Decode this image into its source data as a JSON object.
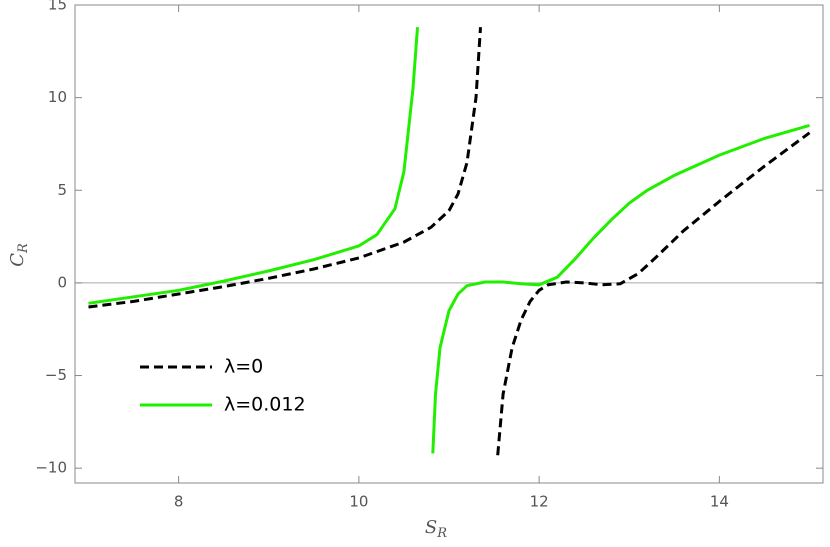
{
  "chart_data": {
    "type": "line",
    "xlabel": "S",
    "xlabel_sub": "R",
    "ylabel": "C",
    "ylabel_sub": "R",
    "xlim": [
      6.85,
      15.15
    ],
    "ylim": [
      -10.8,
      15
    ],
    "xticks": [
      8,
      10,
      12,
      14
    ],
    "yticks": [
      {
        "value": -10,
        "label": "−10"
      },
      {
        "value": -5,
        "label": "−5"
      },
      0,
      5,
      10,
      15
    ],
    "zero_line": true,
    "series": [
      {
        "name": "λ=0",
        "color": "#000000",
        "dashed": true,
        "x": [
          7,
          7.5,
          8,
          8.5,
          9,
          9.5,
          10,
          10.5,
          10.8,
          11,
          11.1,
          11.2,
          11.3,
          11.35,
          null,
          11.54,
          11.6,
          11.7,
          11.8,
          11.9,
          12,
          12.1,
          12.3,
          12.5,
          12.7,
          12.9,
          13.1,
          13.3,
          13.6,
          14,
          14.5,
          15
        ],
        "values": [
          -1.3,
          -1.0,
          -0.6,
          -0.2,
          0.25,
          0.75,
          1.35,
          2.2,
          3.0,
          3.9,
          4.8,
          6.5,
          10.0,
          13.8,
          null,
          -9.3,
          -6,
          -3.5,
          -2.0,
          -1.0,
          -0.4,
          -0.1,
          0.05,
          0.0,
          -0.1,
          -0.05,
          0.5,
          1.4,
          2.8,
          4.4,
          6.3,
          8.1
        ]
      },
      {
        "name": "λ=0.012",
        "color": "#22ee00",
        "dashed": false,
        "x": [
          7,
          7.5,
          8,
          8.5,
          9,
          9.5,
          10,
          10.2,
          10.4,
          10.5,
          10.6,
          10.65,
          null,
          10.82,
          10.85,
          10.9,
          11,
          11.1,
          11.2,
          11.4,
          11.6,
          11.8,
          12,
          12.2,
          12.4,
          12.6,
          12.8,
          13,
          13.2,
          13.5,
          14,
          14.5,
          15
        ],
        "values": [
          -1.1,
          -0.75,
          -0.4,
          0.1,
          0.65,
          1.25,
          2.0,
          2.6,
          4.0,
          6.0,
          10.5,
          13.8,
          null,
          -9.2,
          -6,
          -3.5,
          -1.5,
          -0.6,
          -0.15,
          0.05,
          0.05,
          -0.05,
          -0.1,
          0.3,
          1.3,
          2.4,
          3.4,
          4.3,
          5.0,
          5.8,
          6.9,
          7.8,
          8.5
        ]
      }
    ]
  }
}
